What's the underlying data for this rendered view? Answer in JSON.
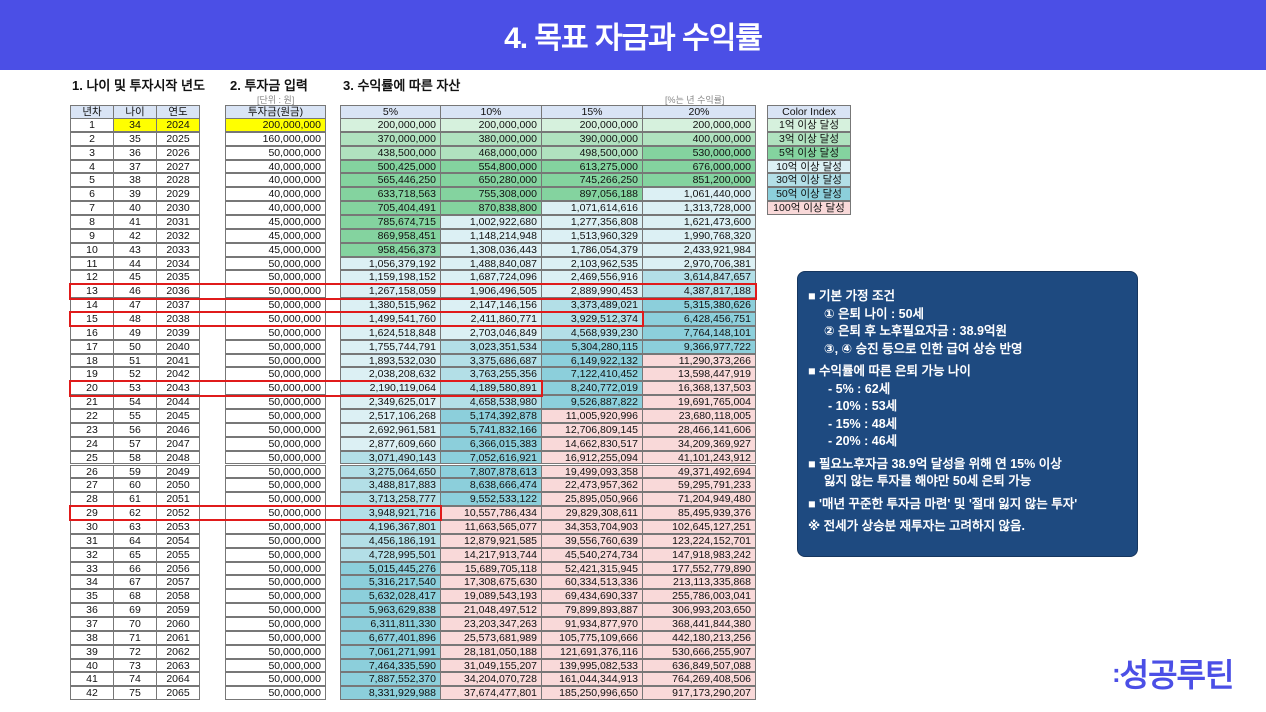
{
  "title": "4. 목표 자금과 수익률",
  "sections": {
    "s1": "1. 나이 및 투자시작 년도",
    "s2": "2. 투자금 입력",
    "s3": "3. 수익률에 따른 자산",
    "unit_note": "[단위 : 원]",
    "rate_note": "[%는 년 수익률]"
  },
  "table": {
    "headers": [
      "년차",
      "나이",
      "연도",
      "투자금(원금)",
      "5%",
      "10%",
      "15%",
      "20%"
    ],
    "highlights": [
      {
        "year": 13,
        "through_col": "20%"
      },
      {
        "year": 15,
        "through_col": "15%"
      },
      {
        "year": 20,
        "through_col": "10%"
      },
      {
        "year": 29,
        "through_col": "5%"
      }
    ],
    "rows": [
      [
        "1",
        "34",
        "2024",
        "200,000,000",
        "200,000,000",
        "200,000,000",
        "200,000,000",
        "200,000,000"
      ],
      [
        "2",
        "35",
        "2025",
        "160,000,000",
        "370,000,000",
        "380,000,000",
        "390,000,000",
        "400,000,000"
      ],
      [
        "3",
        "36",
        "2026",
        "50,000,000",
        "438,500,000",
        "468,000,000",
        "498,500,000",
        "530,000,000"
      ],
      [
        "4",
        "37",
        "2027",
        "40,000,000",
        "500,425,000",
        "554,800,000",
        "613,275,000",
        "676,000,000"
      ],
      [
        "5",
        "38",
        "2028",
        "40,000,000",
        "565,446,250",
        "650,280,000",
        "745,266,250",
        "851,200,000"
      ],
      [
        "6",
        "39",
        "2029",
        "40,000,000",
        "633,718,563",
        "755,308,000",
        "897,056,188",
        "1,061,440,000"
      ],
      [
        "7",
        "40",
        "2030",
        "40,000,000",
        "705,404,491",
        "870,838,800",
        "1,071,614,616",
        "1,313,728,000"
      ],
      [
        "8",
        "41",
        "2031",
        "45,000,000",
        "785,674,715",
        "1,002,922,680",
        "1,277,356,808",
        "1,621,473,600"
      ],
      [
        "9",
        "42",
        "2032",
        "45,000,000",
        "869,958,451",
        "1,148,214,948",
        "1,513,960,329",
        "1,990,768,320"
      ],
      [
        "10",
        "43",
        "2033",
        "45,000,000",
        "958,456,373",
        "1,308,036,443",
        "1,786,054,379",
        "2,433,921,984"
      ],
      [
        "11",
        "44",
        "2034",
        "50,000,000",
        "1,056,379,192",
        "1,488,840,087",
        "2,103,962,535",
        "2,970,706,381"
      ],
      [
        "12",
        "45",
        "2035",
        "50,000,000",
        "1,159,198,152",
        "1,687,724,096",
        "2,469,556,916",
        "3,614,847,657"
      ],
      [
        "13",
        "46",
        "2036",
        "50,000,000",
        "1,267,158,059",
        "1,906,496,505",
        "2,889,990,453",
        "4,387,817,188"
      ],
      [
        "14",
        "47",
        "2037",
        "50,000,000",
        "1,380,515,962",
        "2,147,146,156",
        "3,373,489,021",
        "5,315,380,626"
      ],
      [
        "15",
        "48",
        "2038",
        "50,000,000",
        "1,499,541,760",
        "2,411,860,771",
        "3,929,512,374",
        "6,428,456,751"
      ],
      [
        "16",
        "49",
        "2039",
        "50,000,000",
        "1,624,518,848",
        "2,703,046,849",
        "4,568,939,230",
        "7,764,148,101"
      ],
      [
        "17",
        "50",
        "2040",
        "50,000,000",
        "1,755,744,791",
        "3,023,351,534",
        "5,304,280,115",
        "9,366,977,722"
      ],
      [
        "18",
        "51",
        "2041",
        "50,000,000",
        "1,893,532,030",
        "3,375,686,687",
        "6,149,922,132",
        "11,290,373,266"
      ],
      [
        "19",
        "52",
        "2042",
        "50,000,000",
        "2,038,208,632",
        "3,763,255,356",
        "7,122,410,452",
        "13,598,447,919"
      ],
      [
        "20",
        "53",
        "2043",
        "50,000,000",
        "2,190,119,064",
        "4,189,580,891",
        "8,240,772,019",
        "16,368,137,503"
      ],
      [
        "21",
        "54",
        "2044",
        "50,000,000",
        "2,349,625,017",
        "4,658,538,980",
        "9,526,887,822",
        "19,691,765,004"
      ],
      [
        "22",
        "55",
        "2045",
        "50,000,000",
        "2,517,106,268",
        "5,174,392,878",
        "11,005,920,996",
        "23,680,118,005"
      ],
      [
        "23",
        "56",
        "2046",
        "50,000,000",
        "2,692,961,581",
        "5,741,832,166",
        "12,706,809,145",
        "28,466,141,606"
      ],
      [
        "24",
        "57",
        "2047",
        "50,000,000",
        "2,877,609,660",
        "6,366,015,383",
        "14,662,830,517",
        "34,209,369,927"
      ],
      [
        "25",
        "58",
        "2048",
        "50,000,000",
        "3,071,490,143",
        "7,052,616,921",
        "16,912,255,094",
        "41,101,243,912"
      ],
      [
        "26",
        "59",
        "2049",
        "50,000,000",
        "3,275,064,650",
        "7,807,878,613",
        "19,499,093,358",
        "49,371,492,694"
      ],
      [
        "27",
        "60",
        "2050",
        "50,000,000",
        "3,488,817,883",
        "8,638,666,474",
        "22,473,957,362",
        "59,295,791,233"
      ],
      [
        "28",
        "61",
        "2051",
        "50,000,000",
        "3,713,258,777",
        "9,552,533,122",
        "25,895,050,966",
        "71,204,949,480"
      ],
      [
        "29",
        "62",
        "2052",
        "50,000,000",
        "3,948,921,716",
        "10,557,786,434",
        "29,829,308,611",
        "85,495,939,376"
      ],
      [
        "30",
        "63",
        "2053",
        "50,000,000",
        "4,196,367,801",
        "11,663,565,077",
        "34,353,704,903",
        "102,645,127,251"
      ],
      [
        "31",
        "64",
        "2054",
        "50,000,000",
        "4,456,186,191",
        "12,879,921,585",
        "39,556,760,639",
        "123,224,152,701"
      ],
      [
        "32",
        "65",
        "2055",
        "50,000,000",
        "4,728,995,501",
        "14,217,913,744",
        "45,540,274,734",
        "147,918,983,242"
      ],
      [
        "33",
        "66",
        "2056",
        "50,000,000",
        "5,015,445,276",
        "15,689,705,118",
        "52,421,315,945",
        "177,552,779,890"
      ],
      [
        "34",
        "67",
        "2057",
        "50,000,000",
        "5,316,217,540",
        "17,308,675,630",
        "60,334,513,336",
        "213,113,335,868"
      ],
      [
        "35",
        "68",
        "2058",
        "50,000,000",
        "5,632,028,417",
        "19,089,543,193",
        "69,434,690,337",
        "255,786,003,041"
      ],
      [
        "36",
        "69",
        "2059",
        "50,000,000",
        "5,963,629,838",
        "21,048,497,512",
        "79,899,893,887",
        "306,993,203,650"
      ],
      [
        "37",
        "70",
        "2060",
        "50,000,000",
        "6,311,811,330",
        "23,203,347,263",
        "91,934,877,970",
        "368,441,844,380"
      ],
      [
        "38",
        "71",
        "2061",
        "50,000,000",
        "6,677,401,896",
        "25,573,681,989",
        "105,775,109,666",
        "442,180,213,256"
      ],
      [
        "39",
        "72",
        "2062",
        "50,000,000",
        "7,061,271,991",
        "28,181,050,188",
        "121,691,376,116",
        "530,666,255,907"
      ],
      [
        "40",
        "73",
        "2063",
        "50,000,000",
        "7,464,335,590",
        "31,049,155,207",
        "139,995,082,533",
        "636,849,507,088"
      ],
      [
        "41",
        "74",
        "2064",
        "50,000,000",
        "7,887,552,370",
        "34,204,070,728",
        "161,044,344,913",
        "764,269,408,506"
      ],
      [
        "42",
        "75",
        "2065",
        "50,000,000",
        "8,331,929,988",
        "37,674,477,801",
        "185,250,996,650",
        "917,173,290,207"
      ]
    ]
  },
  "color_index": {
    "title": "Color Index",
    "items": [
      {
        "label": "1억 이상 달성",
        "threshold": 100000000,
        "color": "#d6f1dd"
      },
      {
        "label": "3억 이상 달성",
        "threshold": 300000000,
        "color": "#b0e2bf"
      },
      {
        "label": "5억 이상 달성",
        "threshold": 500000000,
        "color": "#84d39f"
      },
      {
        "label": "10억 이상 달성",
        "threshold": 1000000000,
        "color": "#dcf0f4"
      },
      {
        "label": "30억 이상 달성",
        "threshold": 3000000000,
        "color": "#b3dfe7"
      },
      {
        "label": "50억 이상 달성",
        "threshold": 5000000000,
        "color": "#8ccfdb"
      },
      {
        "label": "100억 이상 달성",
        "threshold": 10000000000,
        "color": "#f9d9d9"
      }
    ]
  },
  "info": {
    "g1_title": "■ 기본 가정 조건",
    "g1_items": [
      "① 은퇴 나이 : 50세",
      "② 은퇴 후 노후필요자금 : 38.9억원",
      "③, ④ 승진 등으로 인한 급여 상승 반영"
    ],
    "g2_title": "■ 수익률에 따른 은퇴 가능 나이",
    "g2_items": [
      "- 5% : 62세",
      "- 10% : 53세",
      "- 15% : 48세",
      "- 20% : 46세"
    ],
    "g3_line1": "■ 필요노후자금 38.9억 달성을 위해 연 15% 이상",
    "g3_line2": "잃지 않는 투자를 해야만 50세 은퇴 가능",
    "g4": "■ '매년 꾸준한 투자금 마련' 및 '절대 잃지 않는 투자'",
    "g5": "※ 전세가 상승분 재투자는 고려하지 않음."
  },
  "logo": "성공루틴",
  "colors": {
    "header": "#4b4fe6",
    "input_highlight": "#ffff00",
    "info_bg": "#1e4a80",
    "box": "#e01b1b"
  }
}
